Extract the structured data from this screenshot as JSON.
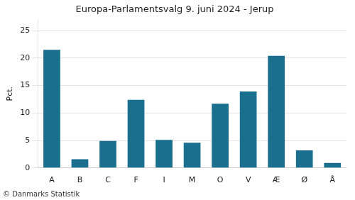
{
  "chart_data": {
    "type": "bar",
    "title": "Europa-Parlamentsvalg 9. juni 2024 - Jerup",
    "categories": [
      "A",
      "B",
      "C",
      "F",
      "I",
      "M",
      "O",
      "V",
      "Æ",
      "Ø",
      "Å"
    ],
    "values": [
      21.5,
      1.6,
      4.9,
      12.4,
      5.1,
      4.6,
      11.7,
      13.9,
      20.4,
      3.2,
      0.9
    ],
    "color": "#1a6e8e",
    "ylabel": "Pct.",
    "ylim": [
      0,
      27
    ],
    "yticks": [
      0,
      5,
      10,
      15,
      20,
      25
    ],
    "grid": true,
    "annotations": [
      "© Danmarks Statistik"
    ]
  }
}
